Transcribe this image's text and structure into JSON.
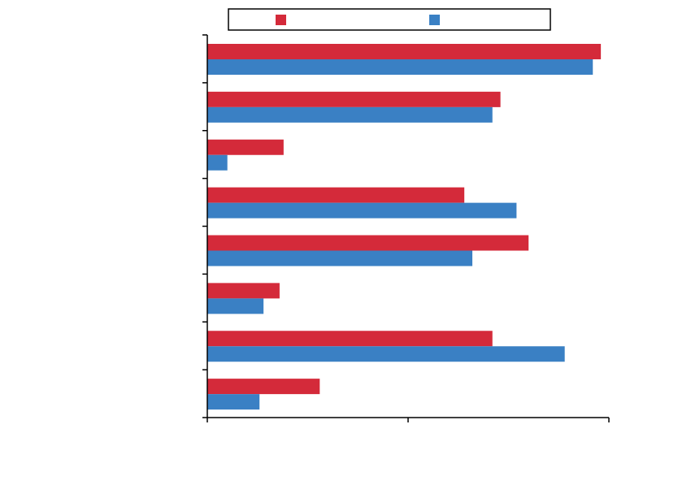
{
  "chart_data": {
    "type": "bar",
    "orientation": "horizontal",
    "categories": [
      null,
      null,
      null,
      null,
      null,
      null,
      null,
      null
    ],
    "series": [
      {
        "color": "#d42a3a",
        "values": [
          98,
          73,
          19,
          64,
          80,
          18,
          71,
          28
        ]
      },
      {
        "color": "#3a80c4",
        "values": [
          96,
          71,
          5,
          77,
          66,
          14,
          89,
          13
        ]
      }
    ],
    "xlim": [
      0,
      100
    ],
    "xticks": [
      0,
      50,
      100
    ]
  }
}
